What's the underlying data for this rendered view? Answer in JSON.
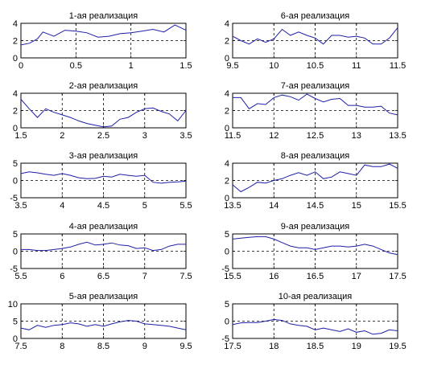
{
  "chart_data": [
    {
      "type": "line",
      "title": "1-ая реализация",
      "xlim": [
        0,
        1.5
      ],
      "ylim": [
        0,
        4
      ],
      "xticks": [
        0,
        0.5,
        1,
        1.5
      ],
      "xtick_labels": [
        "0",
        "0.5",
        "1",
        "1.5"
      ],
      "yticks": [
        0,
        2,
        4
      ],
      "ytick_labels": [
        "0",
        "2",
        "4"
      ],
      "x": [
        0,
        0.08,
        0.15,
        0.2,
        0.3,
        0.4,
        0.5,
        0.6,
        0.7,
        0.8,
        0.9,
        1.0,
        1.1,
        1.2,
        1.3,
        1.4,
        1.5
      ],
      "y": [
        1.5,
        1.7,
        2.2,
        3.0,
        2.5,
        3.2,
        3.1,
        2.9,
        2.4,
        2.5,
        2.8,
        2.9,
        3.1,
        3.3,
        3.0,
        3.8,
        3.2
      ],
      "color": "#1f1fa8"
    },
    {
      "type": "line",
      "title": "6-ая реализация",
      "xlim": [
        9.5,
        11.5
      ],
      "ylim": [
        0,
        4
      ],
      "xticks": [
        9.5,
        10,
        10.5,
        11,
        11.5
      ],
      "xtick_labels": [
        "9.5",
        "10",
        "10.5",
        "11",
        "11.5"
      ],
      "yticks": [
        0,
        2,
        4
      ],
      "ytick_labels": [
        "0",
        "2",
        "4"
      ],
      "x": [
        9.5,
        9.6,
        9.7,
        9.8,
        9.9,
        10.0,
        10.1,
        10.2,
        10.3,
        10.4,
        10.5,
        10.6,
        10.7,
        10.8,
        10.9,
        11.0,
        11.1,
        11.2,
        11.3,
        11.4,
        11.5
      ],
      "y": [
        2.5,
        2.0,
        1.6,
        2.2,
        1.8,
        2.2,
        3.3,
        2.6,
        3.0,
        2.6,
        2.3,
        1.6,
        2.6,
        2.6,
        2.4,
        2.5,
        2.3,
        1.6,
        1.6,
        2.3,
        3.5
      ],
      "color": "#1f1fa8"
    },
    {
      "type": "line",
      "title": "2-ая реализация",
      "xlim": [
        1.5,
        3.5
      ],
      "ylim": [
        0,
        4
      ],
      "xticks": [
        1.5,
        2,
        2.5,
        3,
        3.5
      ],
      "xtick_labels": [
        "1.5",
        "2",
        "2.5",
        "3",
        "3.5"
      ],
      "yticks": [
        0,
        2,
        4
      ],
      "ytick_labels": [
        "0",
        "2",
        "4"
      ],
      "x": [
        1.5,
        1.6,
        1.7,
        1.8,
        1.9,
        2.0,
        2.1,
        2.2,
        2.3,
        2.4,
        2.5,
        2.6,
        2.7,
        2.8,
        2.9,
        3.0,
        3.1,
        3.2,
        3.3,
        3.4,
        3.5
      ],
      "y": [
        3.3,
        2.2,
        1.2,
        2.2,
        1.8,
        1.5,
        1.2,
        0.8,
        0.5,
        0.3,
        0.1,
        0.2,
        1.0,
        1.2,
        1.8,
        2.2,
        2.3,
        1.9,
        1.6,
        0.8,
        2.0
      ],
      "color": "#1f1fa8"
    },
    {
      "type": "line",
      "title": "7-ая реализация",
      "xlim": [
        11.5,
        13.5
      ],
      "ylim": [
        0,
        4
      ],
      "xticks": [
        11.5,
        12,
        12.5,
        13,
        13.5
      ],
      "xtick_labels": [
        "11.5",
        "12",
        "12.5",
        "13",
        "13.5"
      ],
      "yticks": [
        0,
        2,
        4
      ],
      "ytick_labels": [
        "0",
        "2",
        "4"
      ],
      "x": [
        11.5,
        11.6,
        11.7,
        11.8,
        11.9,
        12.0,
        12.1,
        12.2,
        12.3,
        12.4,
        12.5,
        12.6,
        12.7,
        12.8,
        12.9,
        13.0,
        13.1,
        13.2,
        13.3,
        13.4,
        13.5
      ],
      "y": [
        3.5,
        3.5,
        2.2,
        2.8,
        2.7,
        3.5,
        3.8,
        3.6,
        3.2,
        3.9,
        3.4,
        3.0,
        3.3,
        3.4,
        2.6,
        2.6,
        2.4,
        2.4,
        2.5,
        1.7,
        1.5
      ],
      "color": "#1f1fa8"
    },
    {
      "type": "line",
      "title": "3-ая реализация",
      "xlim": [
        3.5,
        5.5
      ],
      "ylim": [
        -5,
        5
      ],
      "xticks": [
        3.5,
        4,
        4.5,
        5,
        5.5
      ],
      "xtick_labels": [
        "3.5",
        "4",
        "4.5",
        "5",
        "5.5"
      ],
      "yticks": [
        -5,
        0,
        5
      ],
      "ytick_labels": [
        "-5",
        "0",
        "5"
      ],
      "x": [
        3.5,
        3.6,
        3.7,
        3.8,
        3.9,
        4.0,
        4.1,
        4.2,
        4.3,
        4.4,
        4.5,
        4.6,
        4.7,
        4.8,
        4.9,
        5.0,
        5.1,
        5.2,
        5.3,
        5.4,
        5.5
      ],
      "y": [
        2.0,
        2.5,
        2.2,
        1.8,
        1.5,
        2.0,
        1.5,
        0.8,
        0.5,
        0.6,
        1.2,
        1.0,
        1.8,
        1.5,
        1.2,
        1.5,
        -0.5,
        -0.8,
        -0.5,
        -0.4,
        -0.2
      ],
      "color": "#1f1fa8"
    },
    {
      "type": "line",
      "title": "8-ая реализация",
      "xlim": [
        13.5,
        15.5
      ],
      "ylim": [
        0,
        4
      ],
      "xticks": [
        13.5,
        14,
        14.5,
        15,
        15.5
      ],
      "xtick_labels": [
        "13.5",
        "14",
        "14.5",
        "15",
        "15.5"
      ],
      "yticks": [
        0,
        2,
        4
      ],
      "ytick_labels": [
        "0",
        "2",
        "4"
      ],
      "x": [
        13.5,
        13.6,
        13.7,
        13.8,
        13.9,
        14.0,
        14.1,
        14.2,
        14.3,
        14.4,
        14.5,
        14.6,
        14.7,
        14.8,
        14.9,
        15.0,
        15.1,
        15.2,
        15.3,
        15.4,
        15.5
      ],
      "y": [
        1.5,
        0.7,
        1.2,
        1.8,
        1.7,
        2.0,
        2.2,
        2.6,
        2.9,
        2.6,
        3.0,
        2.2,
        2.4,
        3.0,
        2.8,
        2.6,
        3.8,
        3.6,
        3.6,
        3.9,
        3.4
      ],
      "color": "#1f1fa8"
    },
    {
      "type": "line",
      "title": "4-ая реализация",
      "xlim": [
        5.5,
        7.5
      ],
      "ylim": [
        -5,
        5
      ],
      "xticks": [
        5.5,
        6,
        6.5,
        7,
        7.5
      ],
      "xtick_labels": [
        "5.5",
        "6",
        "6.5",
        "7",
        "7.5"
      ],
      "yticks": [
        -5,
        0,
        5
      ],
      "ytick_labels": [
        "-5",
        "0",
        "5"
      ],
      "x": [
        5.5,
        5.6,
        5.7,
        5.8,
        5.9,
        6.0,
        6.1,
        6.2,
        6.3,
        6.4,
        6.5,
        6.6,
        6.7,
        6.8,
        6.9,
        7.0,
        7.1,
        7.2,
        7.3,
        7.4,
        7.5
      ],
      "y": [
        0.5,
        0.5,
        0.2,
        0.2,
        0.5,
        0.8,
        1.2,
        2.0,
        2.6,
        1.8,
        2.0,
        2.4,
        1.8,
        1.6,
        0.8,
        1.0,
        0.2,
        0.5,
        1.5,
        2.0,
        2.0
      ],
      "color": "#1f1fa8"
    },
    {
      "type": "line",
      "title": "9-ая реализация",
      "xlim": [
        15.5,
        17.5
      ],
      "ylim": [
        -5,
        5
      ],
      "xticks": [
        15.5,
        16,
        16.5,
        17,
        17.5
      ],
      "xtick_labels": [
        "15.5",
        "16",
        "16.5",
        "17",
        "17.5"
      ],
      "yticks": [
        -5,
        0,
        5
      ],
      "ytick_labels": [
        "-5",
        "0",
        "5"
      ],
      "x": [
        15.5,
        15.6,
        15.7,
        15.8,
        15.9,
        16.0,
        16.1,
        16.2,
        16.3,
        16.4,
        16.5,
        16.6,
        16.7,
        16.8,
        16.9,
        17.0,
        17.1,
        17.2,
        17.3,
        17.4,
        17.5
      ],
      "y": [
        3.5,
        3.8,
        4.0,
        4.2,
        4.2,
        3.5,
        2.5,
        1.5,
        1.0,
        1.0,
        0.5,
        1.0,
        1.5,
        1.5,
        1.2,
        1.5,
        2.0,
        1.5,
        0.5,
        -0.5,
        -1.0
      ],
      "color": "#1f1fa8"
    },
    {
      "type": "line",
      "title": "5-ая реализация",
      "xlim": [
        7.5,
        9.5
      ],
      "ylim": [
        0,
        10
      ],
      "xticks": [
        7.5,
        8,
        8.5,
        9,
        9.5
      ],
      "xtick_labels": [
        "7.5",
        "8",
        "8.5",
        "9",
        "9.5"
      ],
      "yticks": [
        0,
        5,
        10
      ],
      "ytick_labels": [
        "0",
        "5",
        "10"
      ],
      "x": [
        7.5,
        7.6,
        7.7,
        7.8,
        7.9,
        8.0,
        8.1,
        8.2,
        8.3,
        8.4,
        8.5,
        8.6,
        8.7,
        8.8,
        8.9,
        9.0,
        9.1,
        9.2,
        9.3,
        9.4,
        9.5
      ],
      "y": [
        3.0,
        2.5,
        3.8,
        3.2,
        3.8,
        4.0,
        4.5,
        4.2,
        3.5,
        4.0,
        3.5,
        4.2,
        4.8,
        5.2,
        5.0,
        4.2,
        4.0,
        3.8,
        3.5,
        3.0,
        2.5
      ],
      "color": "#1f1fa8"
    },
    {
      "type": "line",
      "title": "10-ая реализация",
      "xlim": [
        17.5,
        19.5
      ],
      "ylim": [
        -5,
        5
      ],
      "xticks": [
        17.5,
        18,
        18.5,
        19,
        19.5
      ],
      "xtick_labels": [
        "17.5",
        "18",
        "18.5",
        "19",
        "19.5"
      ],
      "yticks": [
        -5,
        0,
        5
      ],
      "ytick_labels": [
        "-5",
        "0",
        "5"
      ],
      "x": [
        17.5,
        17.6,
        17.7,
        17.8,
        17.9,
        18.0,
        18.1,
        18.2,
        18.3,
        18.4,
        18.5,
        18.6,
        18.7,
        18.8,
        18.9,
        19.0,
        19.1,
        19.2,
        19.3,
        19.4,
        19.5
      ],
      "y": [
        -1.0,
        -0.5,
        -0.4,
        -0.4,
        0.0,
        0.5,
        0.2,
        -0.8,
        -1.2,
        -1.5,
        -2.5,
        -2.0,
        -2.5,
        -3.0,
        -2.2,
        -3.2,
        -2.8,
        -3.8,
        -3.5,
        -2.5,
        -2.8
      ],
      "color": "#1f1fa8"
    }
  ]
}
